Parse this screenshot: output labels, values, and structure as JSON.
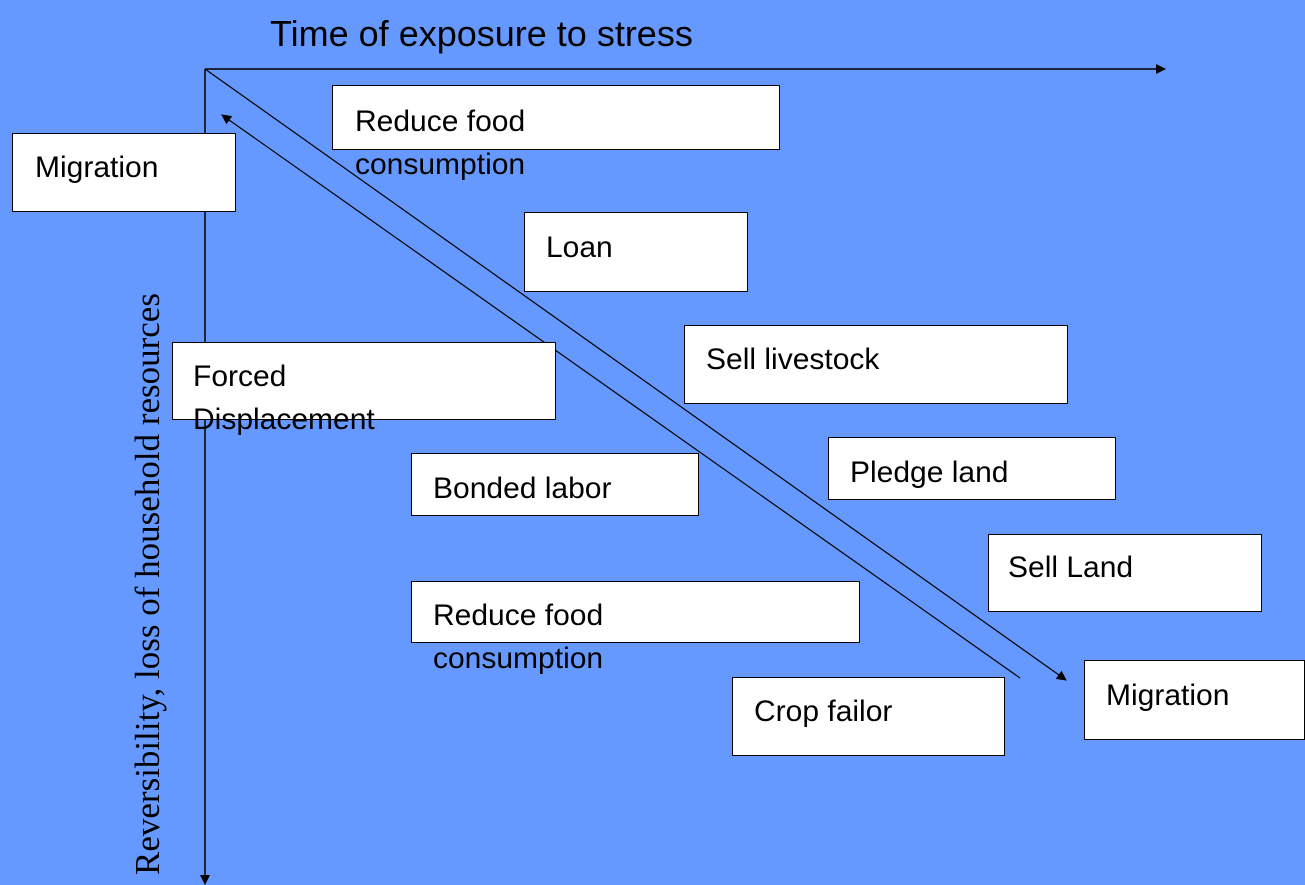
{
  "title": "Time of exposure to stress",
  "vertical_axis_label": "Reversibility, loss of household resources",
  "nodes": [
    {
      "label": "Reduce food consumption"
    },
    {
      "label": "Migration"
    },
    {
      "label": "Loan"
    },
    {
      "label": "Sell livestock"
    },
    {
      "label": "Forced Displacement"
    },
    {
      "label": "Pledge land"
    },
    {
      "label": "Bonded labor"
    },
    {
      "label": "Sell Land"
    },
    {
      "label": "Reduce food consumption"
    },
    {
      "label": "Migration"
    },
    {
      "label": "Crop failor"
    }
  ]
}
